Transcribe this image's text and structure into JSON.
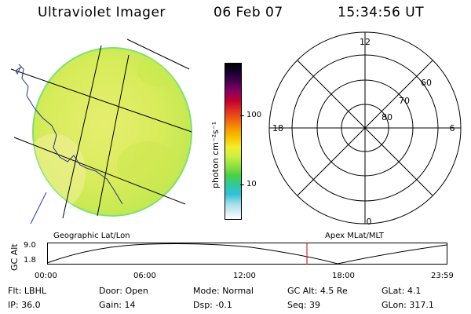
{
  "header": {
    "instrument": "Ultraviolet Imager",
    "date": "06 Feb 07",
    "time": "15:34:56 UT"
  },
  "colorbar": {
    "unit_label": "photon cm⁻²s⁻¹",
    "ticks": [
      "100",
      "10"
    ],
    "colors": [
      "#000000",
      "#1a0033",
      "#4b0050",
      "#8a0060",
      "#c00030",
      "#e03020",
      "#f06010",
      "#f59a00",
      "#f8c800",
      "#f4ee30",
      "#c8f040",
      "#8ee040",
      "#48d040",
      "#30c8a0",
      "#30c0d8",
      "#a0dce8",
      "#ffffff"
    ]
  },
  "polar": {
    "mlt_labels": [
      "12",
      "6",
      "0",
      "18"
    ],
    "mlat_labels": [
      "80",
      "70",
      "60"
    ]
  },
  "map_labels": {
    "left": "Geographic Lat/Lon",
    "right": "Apex MLat/MLT"
  },
  "altitude_plot": {
    "ylabel": "GC Alt",
    "y_ticks": [
      "9.0",
      "1.8"
    ],
    "x_ticks": [
      "00:00",
      "06:00",
      "12:00",
      "18:00",
      "23:59"
    ],
    "marker_time": "15:34:56",
    "line_color": "#000000",
    "marker_color": "#cc0000"
  },
  "status": [
    [
      {
        "k": "Flt:",
        "v": "LBHL"
      },
      {
        "k": "Door:",
        "v": "Open"
      },
      {
        "k": "Mode:",
        "v": "Normal"
      },
      {
        "k": "GC Alt:",
        "v": "4.5 Re"
      },
      {
        "k": "GLat:",
        "v": "4.1"
      }
    ],
    [
      {
        "k": "IP:",
        "v": "36.0"
      },
      {
        "k": "Gain:",
        "v": "14"
      },
      {
        "k": "Dsp:",
        "v": "-0.1"
      },
      {
        "k": "Seq:",
        "v": "39"
      },
      {
        "k": "GLon:",
        "v": "317.1"
      }
    ]
  ]
}
